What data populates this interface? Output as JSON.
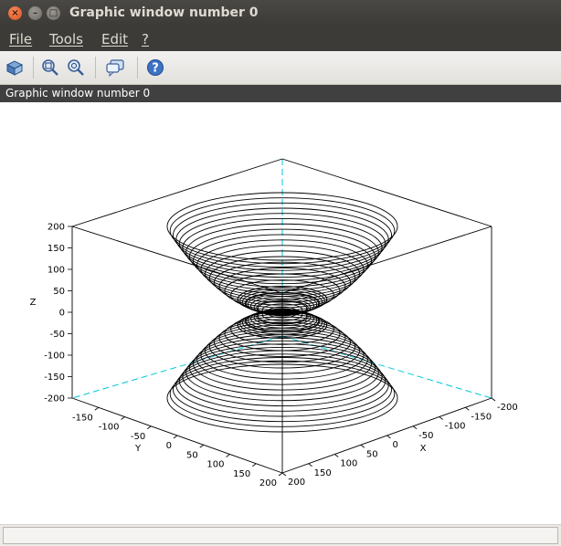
{
  "window": {
    "title": "Graphic window number 0"
  },
  "menubar": {
    "items": [
      "File",
      "Tools",
      "Edit",
      "?"
    ]
  },
  "toolbar": {
    "buttons": [
      "rotate-icon",
      "zoom-in-icon",
      "zoom-out-icon",
      "datatip-icon",
      "help-icon"
    ]
  },
  "canvas": {
    "title": "Graphic window number 0"
  },
  "plot": {
    "type": "3d-contour-surface",
    "surface": "z = x² + y² (upper) and z = -(x² + y²) (lower), drawn as circular level curves",
    "z_axis": {
      "label": "Z",
      "ticks": [
        "200",
        "150",
        "100",
        "50",
        "0",
        "-50",
        "-100",
        "-150",
        "-200"
      ],
      "range": [
        -200,
        200
      ]
    },
    "y_axis": {
      "label": "Y",
      "ticks": [
        "-150",
        "-100",
        "-50",
        "0",
        "50",
        "100",
        "150",
        "200"
      ],
      "range": [
        -200,
        200
      ]
    },
    "x_axis": {
      "label": "X",
      "ticks": [
        "200",
        "150",
        "100",
        "50",
        "0",
        "-50",
        "-100",
        "-150",
        "-200"
      ],
      "range": [
        -200,
        200
      ]
    },
    "colors": {
      "curves": "#000000",
      "hidden_axes": "#00c8d8",
      "box": "#000000"
    }
  },
  "statusbar": {
    "text": ""
  }
}
